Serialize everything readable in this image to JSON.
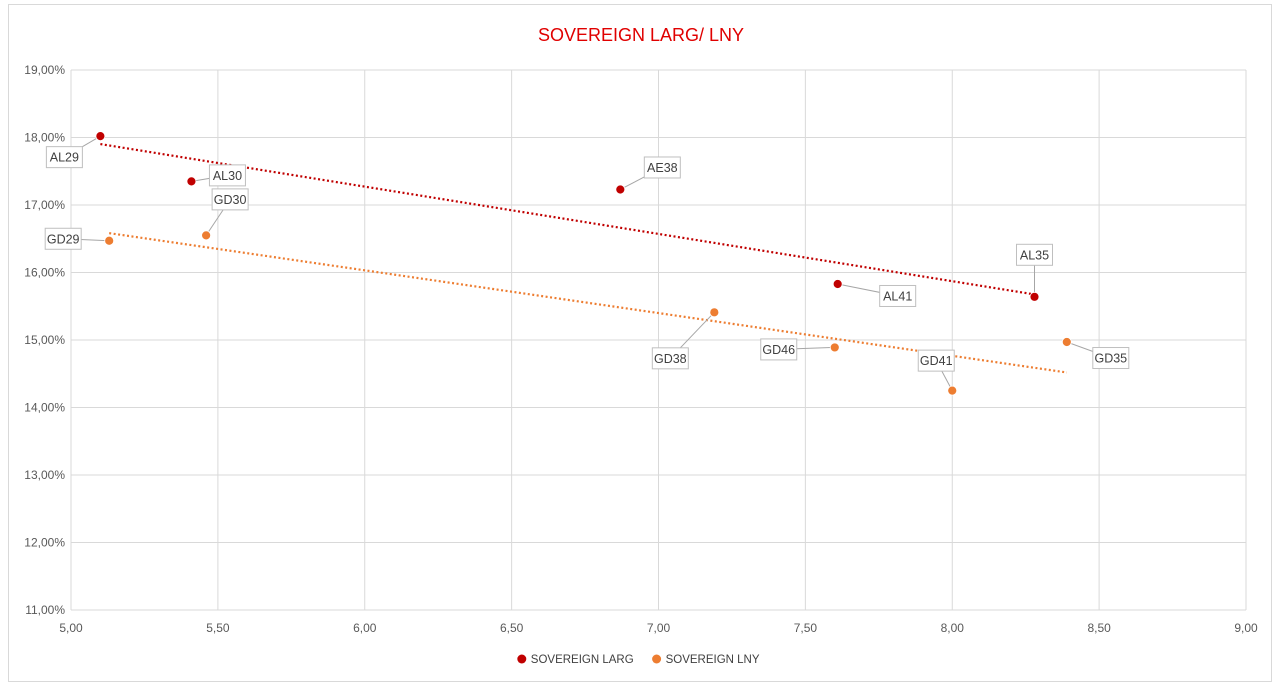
{
  "chart_data": {
    "type": "scatter",
    "title": "SOVEREIGN LARG/ LNY",
    "xlabel": "",
    "ylabel": "",
    "xlim": [
      5.0,
      9.0
    ],
    "ylim": [
      0.11,
      0.19
    ],
    "x_ticks": [
      "5,00",
      "5,50",
      "6,00",
      "6,50",
      "7,00",
      "7,50",
      "8,00",
      "8,50",
      "9,00"
    ],
    "y_ticks": [
      "11,00%",
      "12,00%",
      "13,00%",
      "14,00%",
      "15,00%",
      "16,00%",
      "17,00%",
      "18,00%",
      "19,00%"
    ],
    "grid": true,
    "legend_position": "bottom",
    "series": [
      {
        "name": "SOVEREIGN LARG",
        "color": "#c00000",
        "trendline": "linear-dotted",
        "points": [
          {
            "label": "AL29",
            "x": 5.1,
            "y": 0.1802
          },
          {
            "label": "AL30",
            "x": 5.41,
            "y": 0.1735
          },
          {
            "label": "AE38",
            "x": 6.87,
            "y": 0.1723
          },
          {
            "label": "AL41",
            "x": 7.61,
            "y": 0.1583
          },
          {
            "label": "AL35",
            "x": 8.28,
            "y": 0.1564
          }
        ]
      },
      {
        "name": "SOVEREIGN LNY",
        "color": "#ed7d31",
        "trendline": "linear-dotted",
        "points": [
          {
            "label": "GD29",
            "x": 5.13,
            "y": 0.1647
          },
          {
            "label": "GD30",
            "x": 5.46,
            "y": 0.1655
          },
          {
            "label": "GD38",
            "x": 7.19,
            "y": 0.1541
          },
          {
            "label": "GD46",
            "x": 7.6,
            "y": 0.1489
          },
          {
            "label": "GD41",
            "x": 8.0,
            "y": 0.1425
          },
          {
            "label": "GD35",
            "x": 8.39,
            "y": 0.1497
          }
        ]
      }
    ]
  }
}
